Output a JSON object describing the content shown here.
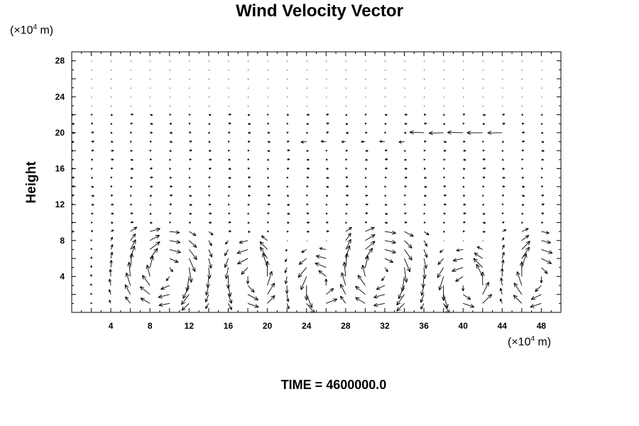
{
  "chart_data": {
    "type": "vector-field",
    "title": "Wind Velocity Vector",
    "ylabel": "Height",
    "y_unit": {
      "base": "(×10",
      "exp": "4",
      "rest": " m)"
    },
    "x_unit": {
      "base": "(×10",
      "exp": "4",
      "rest": " m)"
    },
    "xlim": [
      0,
      50
    ],
    "ylim": [
      0,
      29
    ],
    "x_ticks": [
      4,
      8,
      12,
      16,
      20,
      24,
      28,
      32,
      36,
      40,
      44,
      48
    ],
    "y_ticks": [
      4,
      8,
      12,
      16,
      20,
      24,
      28
    ],
    "grid_x_step": 2,
    "grid_y_step": 1,
    "cells": [
      {
        "x0": 0,
        "x1": 14.5,
        "cx": 9.5,
        "cy": 4.5,
        "wx": 3.8,
        "h": 7.5,
        "dir": -1
      },
      {
        "x0": 14.5,
        "x1": 21,
        "cx": 18.5,
        "cy": 4.0,
        "wx": 2.2,
        "h": 7,
        "dir": 1
      },
      {
        "x0": 21,
        "x1": 28,
        "cx": 25.5,
        "cy": 3.0,
        "wx": 2.5,
        "h": 6,
        "dir": 1
      },
      {
        "x0": 28,
        "x1": 36.5,
        "cx": 31.5,
        "cy": 4.5,
        "wx": 3.8,
        "h": 8,
        "dir": -1
      },
      {
        "x0": 36.5,
        "x1": 44,
        "cx": 40.5,
        "cy": 3.0,
        "wx": 3.0,
        "h": 6,
        "dir": 1
      },
      {
        "x0": 44,
        "x1": 50,
        "cx": 47.5,
        "cy": 4.0,
        "wx": 2.5,
        "h": 7.5,
        "dir": -1
      }
    ],
    "jets": [
      {
        "y": 20,
        "x0": 36,
        "x1": 44,
        "u": -1.0
      },
      {
        "y": 19,
        "x0": 24,
        "x1": 34,
        "u": -0.4
      }
    ]
  },
  "time_label": "TIME = 4600000.0"
}
